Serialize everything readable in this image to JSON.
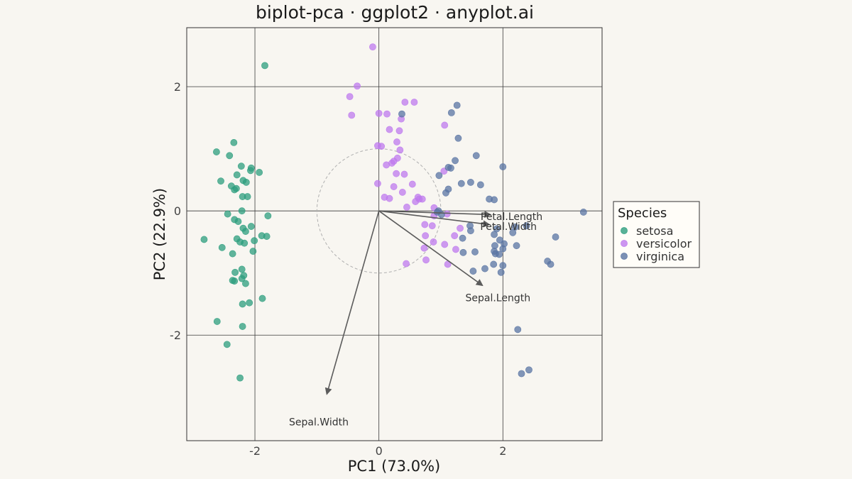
{
  "chart_data": {
    "type": "scatter",
    "title": "biplot-pca · ggplot2 · anyplot.ai",
    "xlabel": "PC1 (73.0%)",
    "ylabel": "PC2 (22.9%)",
    "xlim": [
      -3.1,
      3.6
    ],
    "ylim": [
      -3.7,
      2.95
    ],
    "x_ticks": [
      -2,
      0,
      2
    ],
    "y_ticks": [
      -2,
      0,
      2
    ],
    "x_tick_labels": [
      "-2",
      "0",
      "2"
    ],
    "y_tick_labels": [
      "-2",
      "0",
      "2"
    ],
    "grid": true,
    "unit_circle_radius": 1,
    "legend": {
      "title": "Species",
      "position": "right"
    },
    "series": [
      {
        "name": "setosa",
        "color": "#2e9e7e",
        "points": [
          [
            -1.84,
            2.34
          ],
          [
            -2.34,
            1.1
          ],
          [
            -2.62,
            0.95
          ],
          [
            -2.41,
            0.89
          ],
          [
            -2.22,
            0.72
          ],
          [
            -2.06,
            0.69
          ],
          [
            -2.07,
            0.65
          ],
          [
            -1.93,
            0.62
          ],
          [
            -2.29,
            0.58
          ],
          [
            -2.55,
            0.48
          ],
          [
            -2.19,
            0.49
          ],
          [
            -2.14,
            0.46
          ],
          [
            -2.38,
            0.4
          ],
          [
            -2.3,
            0.36
          ],
          [
            -2.33,
            0.34
          ],
          [
            -2.2,
            0.23
          ],
          [
            -2.12,
            0.23
          ],
          [
            -2.21,
            0.0
          ],
          [
            -2.44,
            -0.05
          ],
          [
            -1.79,
            -0.08
          ],
          [
            -2.33,
            -0.14
          ],
          [
            -2.27,
            -0.17
          ],
          [
            -2.06,
            -0.25
          ],
          [
            -2.19,
            -0.28
          ],
          [
            -2.15,
            -0.33
          ],
          [
            -1.89,
            -0.4
          ],
          [
            -1.81,
            -0.41
          ],
          [
            -2.82,
            -0.46
          ],
          [
            -2.29,
            -0.45
          ],
          [
            -2.24,
            -0.5
          ],
          [
            -2.01,
            -0.48
          ],
          [
            -2.17,
            -0.52
          ],
          [
            -2.53,
            -0.59
          ],
          [
            -2.36,
            -0.69
          ],
          [
            -2.03,
            -0.65
          ],
          [
            -2.21,
            -0.94
          ],
          [
            -2.32,
            -0.99
          ],
          [
            -2.18,
            -1.04
          ],
          [
            -2.21,
            -1.09
          ],
          [
            -2.36,
            -1.12
          ],
          [
            -2.33,
            -1.13
          ],
          [
            -2.15,
            -1.17
          ],
          [
            -1.88,
            -1.41
          ],
          [
            -2.09,
            -1.48
          ],
          [
            -2.2,
            -1.5
          ],
          [
            -2.61,
            -1.78
          ],
          [
            -2.2,
            -1.86
          ],
          [
            -2.45,
            -2.15
          ],
          [
            -2.24,
            -2.69
          ]
        ]
      },
      {
        "name": "versicolor",
        "color": "#bf7aee",
        "points": [
          [
            -0.1,
            2.64
          ],
          [
            -0.35,
            2.01
          ],
          [
            -0.47,
            1.84
          ],
          [
            -0.44,
            1.54
          ],
          [
            0.42,
            1.75
          ],
          [
            0.57,
            1.75
          ],
          [
            0.0,
            1.57
          ],
          [
            0.13,
            1.56
          ],
          [
            0.36,
            1.48
          ],
          [
            1.06,
            1.38
          ],
          [
            0.17,
            1.31
          ],
          [
            0.33,
            1.29
          ],
          [
            0.29,
            1.11
          ],
          [
            -0.02,
            1.05
          ],
          [
            0.04,
            1.04
          ],
          [
            0.34,
            0.98
          ],
          [
            0.3,
            0.85
          ],
          [
            0.24,
            0.8
          ],
          [
            0.21,
            0.77
          ],
          [
            0.12,
            0.74
          ],
          [
            1.05,
            0.64
          ],
          [
            0.28,
            0.6
          ],
          [
            0.41,
            0.59
          ],
          [
            0.54,
            0.43
          ],
          [
            -0.02,
            0.44
          ],
          [
            0.24,
            0.39
          ],
          [
            0.38,
            0.3
          ],
          [
            0.63,
            0.22
          ],
          [
            0.65,
            0.19
          ],
          [
            0.09,
            0.22
          ],
          [
            0.17,
            0.2
          ],
          [
            0.7,
            0.19
          ],
          [
            0.59,
            0.15
          ],
          [
            0.45,
            0.06
          ],
          [
            0.89,
            0.05
          ],
          [
            1.1,
            -0.05
          ],
          [
            0.89,
            -0.08
          ],
          [
            0.74,
            -0.22
          ],
          [
            0.86,
            -0.24
          ],
          [
            1.31,
            -0.28
          ],
          [
            1.22,
            -0.4
          ],
          [
            0.75,
            -0.4
          ],
          [
            0.88,
            -0.5
          ],
          [
            0.73,
            -0.6
          ],
          [
            1.06,
            -0.54
          ],
          [
            1.24,
            -0.62
          ],
          [
            0.76,
            -0.79
          ],
          [
            1.11,
            -0.86
          ],
          [
            0.44,
            -0.85
          ]
        ]
      },
      {
        "name": "virginica",
        "color": "#5a74a3",
        "points": [
          [
            1.26,
            1.7
          ],
          [
            1.17,
            1.58
          ],
          [
            0.37,
            1.56
          ],
          [
            1.28,
            1.17
          ],
          [
            1.57,
            0.89
          ],
          [
            1.23,
            0.81
          ],
          [
            1.16,
            0.69
          ],
          [
            1.12,
            0.7
          ],
          [
            2.0,
            0.71
          ],
          [
            0.97,
            0.57
          ],
          [
            1.48,
            0.46
          ],
          [
            1.33,
            0.44
          ],
          [
            1.64,
            0.42
          ],
          [
            1.12,
            0.35
          ],
          [
            1.08,
            0.29
          ],
          [
            1.78,
            0.19
          ],
          [
            1.86,
            0.18
          ],
          [
            0.96,
            0.0
          ],
          [
            0.94,
            -0.02
          ],
          [
            1.01,
            -0.06
          ],
          [
            3.3,
            -0.02
          ],
          [
            2.2,
            -0.26
          ],
          [
            2.38,
            -0.24
          ],
          [
            1.47,
            -0.24
          ],
          [
            1.48,
            -0.32
          ],
          [
            1.9,
            -0.29
          ],
          [
            1.86,
            -0.38
          ],
          [
            2.16,
            -0.35
          ],
          [
            2.85,
            -0.42
          ],
          [
            1.95,
            -0.47
          ],
          [
            2.02,
            -0.53
          ],
          [
            1.35,
            -0.44
          ],
          [
            1.87,
            -0.56
          ],
          [
            2.0,
            -0.61
          ],
          [
            2.22,
            -0.56
          ],
          [
            1.86,
            -0.65
          ],
          [
            1.36,
            -0.67
          ],
          [
            1.55,
            -0.66
          ],
          [
            1.88,
            -0.69
          ],
          [
            1.94,
            -0.7
          ],
          [
            1.85,
            -0.86
          ],
          [
            2.72,
            -0.81
          ],
          [
            2.77,
            -0.86
          ],
          [
            2.0,
            -0.88
          ],
          [
            1.71,
            -0.93
          ],
          [
            1.52,
            -0.97
          ],
          [
            1.97,
            -0.99
          ],
          [
            2.24,
            -1.91
          ],
          [
            2.42,
            -2.56
          ],
          [
            2.3,
            -2.62
          ]
        ]
      }
    ],
    "loadings": [
      {
        "name": "Sepal.Length",
        "x": 1.67,
        "y": -1.2,
        "label_x": 1.92,
        "label_y": -1.4
      },
      {
        "name": "Sepal.Width",
        "x": -0.84,
        "y": -2.95,
        "label_x": -0.97,
        "label_y": -3.4
      },
      {
        "name": "Petal.Length",
        "x": 1.8,
        "y": -0.06,
        "label_x": 2.14,
        "label_y": -0.09
      },
      {
        "name": "Petal.Width",
        "x": 1.78,
        "y": -0.22,
        "label_x": 2.09,
        "label_y": -0.25
      }
    ]
  }
}
